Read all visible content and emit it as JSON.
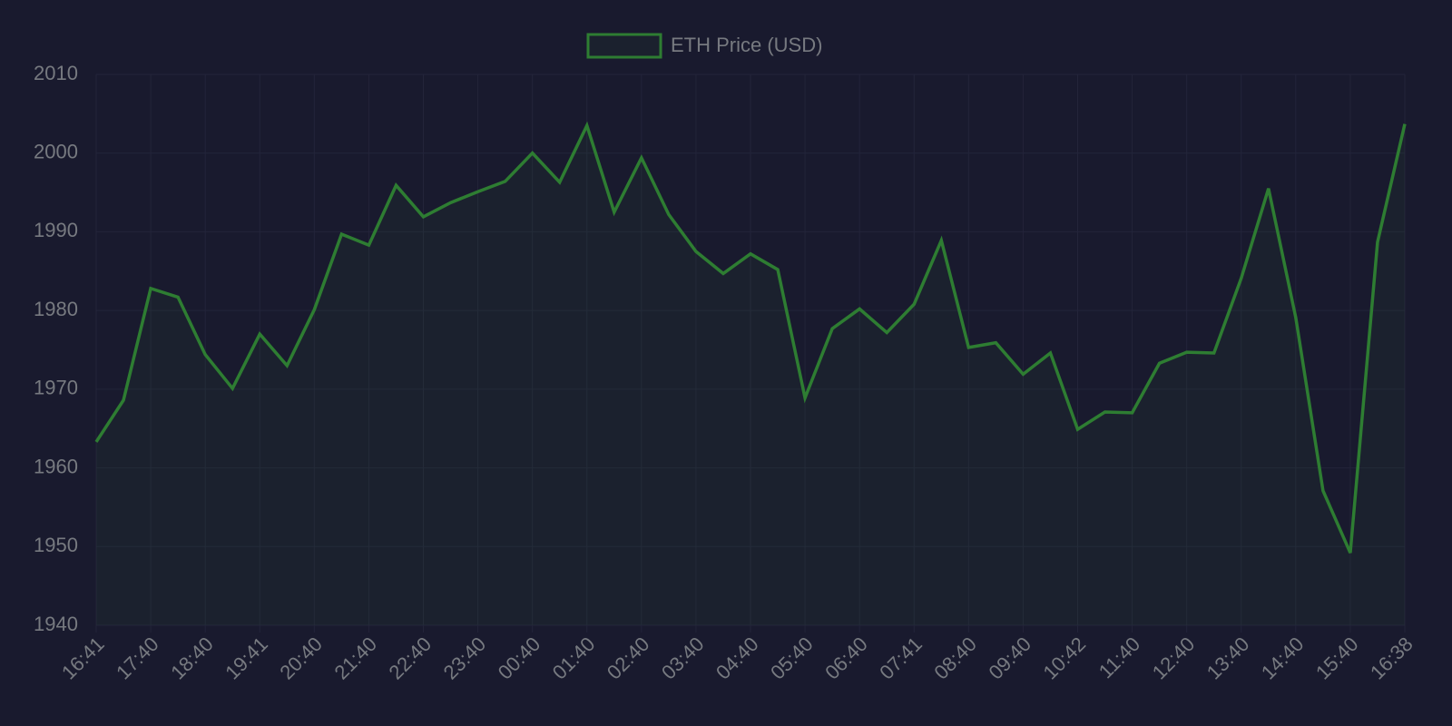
{
  "chart_data": {
    "type": "line",
    "categories": [
      "16:41",
      null,
      "17:40",
      null,
      "18:40",
      null,
      "19:41",
      null,
      "20:40",
      null,
      "21:40",
      null,
      "22:40",
      null,
      "23:40",
      null,
      "00:40",
      null,
      "01:40",
      null,
      "02:40",
      null,
      "03:40",
      null,
      "04:40",
      null,
      "05:40",
      null,
      "06:40",
      null,
      "07:41",
      null,
      "08:40",
      null,
      "09:40",
      null,
      "10:42",
      null,
      "11:40",
      null,
      "12:40",
      null,
      "13:40",
      null,
      "14:40",
      null,
      "15:40",
      null,
      "16:38"
    ],
    "series": [
      {
        "name": "ETH Price (USD)",
        "color": "#2e7d32",
        "values": [
          1963.3,
          1968.6,
          1982.8,
          1981.7,
          1974.4,
          1970.1,
          1977.0,
          1973.0,
          1980.1,
          1989.7,
          1988.3,
          1995.9,
          1991.9,
          1993.7,
          1995.1,
          1996.4,
          2000.0,
          1996.3,
          2003.5,
          1992.5,
          1999.4,
          1992.2,
          1987.5,
          1984.7,
          1987.2,
          1985.2,
          1968.9,
          1977.7,
          1980.2,
          1977.2,
          1980.8,
          1988.9,
          1975.3,
          1975.9,
          1971.9,
          1974.6,
          1964.9,
          1967.1,
          1967.0,
          1973.3,
          1974.7,
          1974.6,
          1984.1,
          1995.5,
          1979.1,
          1957.1,
          1949.2,
          1988.7,
          2003.7
        ]
      }
    ],
    "ylim": [
      1940,
      2010
    ],
    "yticks": [
      1940,
      1950,
      1960,
      1970,
      1980,
      1990,
      2000,
      2010
    ],
    "grid": true,
    "legend": "top"
  }
}
